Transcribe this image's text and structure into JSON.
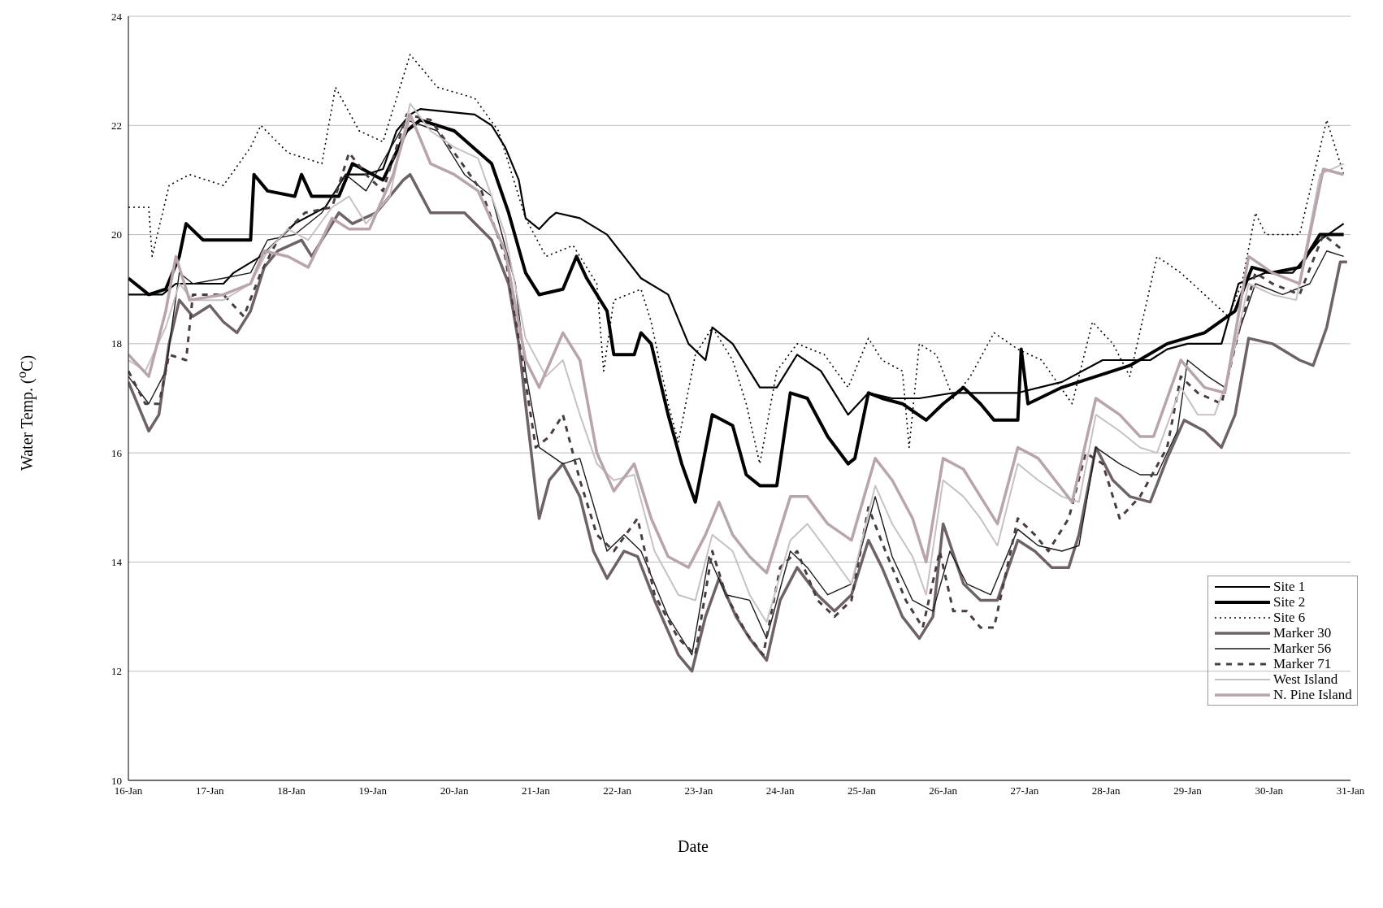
{
  "chart_data": {
    "type": "line",
    "xlabel": "Date",
    "ylabel": "Water Temp. ($^{o}$C)",
    "xlim": [
      "--01-16",
      "--01-31"
    ],
    "xticks": [
      {
        "value": "--01-16",
        "label": "16-Jan"
      },
      {
        "value": "--01-17",
        "label": "17-Jan"
      },
      {
        "value": "--01-18",
        "label": "18-Jan"
      },
      {
        "value": "--01-19",
        "label": "19-Jan"
      },
      {
        "value": "--01-20",
        "label": "20-Jan"
      },
      {
        "value": "--01-21",
        "label": "21-Jan"
      },
      {
        "value": "--01-22",
        "label": "22-Jan"
      },
      {
        "value": "--01-23",
        "label": "23-Jan"
      },
      {
        "value": "--01-24",
        "label": "24-Jan"
      },
      {
        "value": "--01-25",
        "label": "25-Jan"
      },
      {
        "value": "--01-26",
        "label": "26-Jan"
      },
      {
        "value": "--01-27",
        "label": "27-Jan"
      },
      {
        "value": "--01-28",
        "label": "28-Jan"
      },
      {
        "value": "--01-29",
        "label": "29-Jan"
      },
      {
        "value": "--01-30",
        "label": "30-Jan"
      },
      {
        "value": "--01-31",
        "label": "31-Jan"
      }
    ],
    "ylim": [
      10,
      24
    ],
    "yticks": [
      10,
      12,
      14,
      16,
      18,
      20,
      22,
      24
    ],
    "grid": "y",
    "legend": "right",
    "marker": "none",
    "series": [
      {
        "name": "Site 1",
        "color": "#000000",
        "x": [
          "--01-16T00:00",
          "--01-16T10:00",
          "--01-16T14:00",
          "--01-17T04:00",
          "--01-17T07:00",
          "--01-17T15:00",
          "--01-17T20:00",
          "--01-18T01:00",
          "--01-18T10:00",
          "--01-18T16:00",
          "--01-18T22:00",
          "--01-19T03:00",
          "--01-19T07:00",
          "--01-19T11:00",
          "--01-19T14:00",
          "--01-20T06:00",
          "--01-20T11:00",
          "--01-20T15:00",
          "--01-20T19:00",
          "--01-20T21:00",
          "--01-21T01:00",
          "--01-21T04:00",
          "--01-21T06:00",
          "--01-21T13:00",
          "--01-21T21:00",
          "--01-22T02:00",
          "--01-22T07:00",
          "--01-22T15:00",
          "--01-22T21:00",
          "--01-23T02:00",
          "--01-23T04:00",
          "--01-23T10:00",
          "--01-23T18:00",
          "--01-23T23:00",
          "--01-24T05:00",
          "--01-24T12:00",
          "--01-24T20:00",
          "--01-25T02:00",
          "--01-25T09:00",
          "--01-25T17:00",
          "--01-26T03:00",
          "--01-26T22:00",
          "--01-27T11:00",
          "--01-27T23:00",
          "--01-28T13:00",
          "--01-28T18:00",
          "--01-29T00:00",
          "--01-29T10:00",
          "--01-29T15:00",
          "--01-29T23:00",
          "--01-30T07:00",
          "--01-30T15:00",
          "--01-30T22:00"
        ],
        "values": [
          18.9,
          18.9,
          19.1,
          19.1,
          19.3,
          19.6,
          19.9,
          20.2,
          20.5,
          21.1,
          21.1,
          21.2,
          21.9,
          22.2,
          22.3,
          22.2,
          22.0,
          21.6,
          21.0,
          20.3,
          20.1,
          20.3,
          20.4,
          20.3,
          20.0,
          19.6,
          19.2,
          18.9,
          18.0,
          17.7,
          18.3,
          18.0,
          17.2,
          17.2,
          17.8,
          17.5,
          16.7,
          17.1,
          17.0,
          17.0,
          17.1,
          17.1,
          17.3,
          17.7,
          17.7,
          17.9,
          18.0,
          18.0,
          19.1,
          19.3,
          19.3,
          19.9,
          20.2
        ]
      },
      {
        "name": "Site 2",
        "color": "#000000",
        "x": [
          "--01-16T00:00",
          "--01-16T06:00",
          "--01-16T11:00",
          "--01-16T15:00",
          "--01-16T17:00",
          "--01-16T22:00",
          "--01-17T12:00",
          "--01-17T13:00",
          "--01-17T17:00",
          "--01-18T01:00",
          "--01-18T03:00",
          "--01-18T06:00",
          "--01-18T14:00",
          "--01-18T18:00",
          "--01-19T03:00",
          "--01-19T10:00",
          "--01-19T14:00",
          "--01-20T00:00",
          "--01-20T11:00",
          "--01-20T16:00",
          "--01-20T21:00",
          "--01-21T01:00",
          "--01-21T08:00",
          "--01-21T12:00",
          "--01-21T15:00",
          "--01-21T21:00",
          "--01-21T23:00",
          "--01-22T05:00",
          "--01-22T07:00",
          "--01-22T10:00",
          "--01-22T15:00",
          "--01-22T19:00",
          "--01-22T23:00",
          "--01-23T04:00",
          "--01-23T10:00",
          "--01-23T14:00",
          "--01-23T18:00",
          "--01-23T23:00",
          "--01-24T03:00",
          "--01-24T08:00",
          "--01-24T14:00",
          "--01-24T20:00",
          "--01-24T22:00",
          "--01-25T02:00",
          "--01-25T06:00",
          "--01-25T12:00",
          "--01-25T19:00",
          "--01-26T00:00",
          "--01-26T06:00",
          "--01-26T11:00",
          "--01-26T15:00",
          "--01-26T22:00",
          "--01-26T23:00",
          "--01-27T01:00",
          "--01-27T11:00",
          "--01-27T21:00",
          "--01-28T07:00",
          "--01-28T18:00",
          "--01-29T05:00",
          "--01-29T14:00",
          "--01-29T19:00",
          "--01-30T01:00",
          "--01-30T09:00",
          "--01-30T15:00",
          "--01-30T22:00"
        ],
        "values": [
          19.2,
          18.9,
          19.0,
          19.6,
          20.2,
          19.9,
          19.9,
          21.1,
          20.8,
          20.7,
          21.1,
          20.7,
          20.7,
          21.3,
          21.0,
          21.9,
          22.1,
          21.9,
          21.3,
          20.4,
          19.3,
          18.9,
          19.0,
          19.6,
          19.2,
          18.6,
          17.8,
          17.8,
          18.2,
          18.0,
          16.7,
          15.8,
          15.1,
          16.7,
          16.5,
          15.6,
          15.4,
          15.4,
          17.1,
          17.0,
          16.3,
          15.8,
          15.9,
          17.1,
          17.0,
          16.9,
          16.6,
          16.9,
          17.2,
          16.9,
          16.6,
          16.6,
          17.9,
          16.9,
          17.2,
          17.4,
          17.6,
          18.0,
          18.2,
          18.6,
          19.4,
          19.3,
          19.4,
          20.0,
          20.0
        ]
      },
      {
        "name": "Site 6",
        "color": "#000000",
        "line_style": "dotted",
        "x": [
          "--01-16T00:00",
          "--01-16T06:00",
          "--01-16T07:00",
          "--01-16T12:00",
          "--01-16T18:00",
          "--01-17T04:00",
          "--01-17T12:00",
          "--01-17T15:00",
          "--01-17T23:00",
          "--01-18T09:00",
          "--01-18T13:00",
          "--01-18T20:00",
          "--01-19T03:00",
          "--01-19T11:00",
          "--01-19T19:00",
          "--01-20T06:00",
          "--01-20T13:00",
          "--01-20T21:00",
          "--01-21T03:00",
          "--01-21T11:00",
          "--01-21T18:00",
          "--01-21T20:00",
          "--01-21T23:00",
          "--01-22T07:00",
          "--01-22T10:00",
          "--01-22T15:00",
          "--01-22T18:00",
          "--01-22T23:00",
          "--01-23T04:00",
          "--01-23T10:00",
          "--01-23T14:00",
          "--01-23T18:00",
          "--01-23T23:00",
          "--01-24T05:00",
          "--01-24T13:00",
          "--01-24T20:00",
          "--01-25T02:00",
          "--01-25T06:00",
          "--01-25T12:00",
          "--01-25T14:00",
          "--01-25T17:00",
          "--01-25T22:00",
          "--01-26T03:00",
          "--01-26T08:00",
          "--01-26T15:00",
          "--01-26T22:00",
          "--01-27T05:00",
          "--01-27T14:00",
          "--01-27T20:00",
          "--01-28T02:00",
          "--01-28T07:00",
          "--01-28T15:00",
          "--01-28T22:00",
          "--01-29T05:00",
          "--01-29T12:00",
          "--01-29T16:00",
          "--01-29T20:00",
          "--01-29T23:00",
          "--01-30T09:00",
          "--01-30T17:00",
          "--01-30T22:00"
        ],
        "values": [
          20.5,
          20.5,
          19.6,
          20.9,
          21.1,
          20.9,
          21.6,
          22.0,
          21.5,
          21.3,
          22.7,
          21.9,
          21.7,
          23.3,
          22.7,
          22.5,
          21.9,
          20.3,
          19.6,
          19.8,
          19.1,
          17.5,
          18.8,
          19.0,
          18.4,
          16.9,
          16.2,
          17.8,
          18.3,
          17.7,
          16.9,
          15.8,
          17.5,
          18.0,
          17.8,
          17.2,
          18.1,
          17.7,
          17.5,
          16.1,
          18.0,
          17.8,
          17.0,
          17.4,
          18.2,
          17.9,
          17.7,
          16.9,
          18.4,
          18.0,
          17.4,
          19.6,
          19.3,
          18.9,
          18.5,
          19.1,
          20.4,
          20.0,
          20.0,
          22.1,
          21.1
        ]
      },
      {
        "name": "Marker 30",
        "color": "#6e6268",
        "x": [
          "--01-16T00:00",
          "--01-16T06:00",
          "--01-16T09:00",
          "--01-16T12:00",
          "--01-16T15:00",
          "--01-16T19:00",
          "--01-17T00:00",
          "--01-17T04:00",
          "--01-17T08:00",
          "--01-17T12:00",
          "--01-17T16:00",
          "--01-17T20:00",
          "--01-18T03:00",
          "--01-18T06:00",
          "--01-18T10:00",
          "--01-18T14:00",
          "--01-18T18:00",
          "--01-19T01:00",
          "--01-19T09:00",
          "--01-19T11:00",
          "--01-19T17:00",
          "--01-20T03:00",
          "--01-20T11:00",
          "--01-20T16:00",
          "--01-20T19:00",
          "--01-20T21:00",
          "--01-21T00:00",
          "--01-21T01:00",
          "--01-21T04:00",
          "--01-21T08:00",
          "--01-21T13:00",
          "--01-21T17:00",
          "--01-21T21:00",
          "--01-22T02:00",
          "--01-22T06:00",
          "--01-22T11:00",
          "--01-22T18:00",
          "--01-22T22:00",
          "--01-23T02:00",
          "--01-23T06:00",
          "--01-23T11:00",
          "--01-23T15:00",
          "--01-23T20:00",
          "--01-24T00:00",
          "--01-24T05:00",
          "--01-24T11:00",
          "--01-24T16:00",
          "--01-24T21:00",
          "--01-25T02:00",
          "--01-25T06:00",
          "--01-25T12:00",
          "--01-25T17:00",
          "--01-25T21:00",
          "--01-26T00:00",
          "--01-26T06:00",
          "--01-26T11:00",
          "--01-26T16:00",
          "--01-26T22:00",
          "--01-27T03:00",
          "--01-27T08:00",
          "--01-27T13:00",
          "--01-27T16:00",
          "--01-27T21:00",
          "--01-28T02:00",
          "--01-28T07:00",
          "--01-28T13:00",
          "--01-28T18:00",
          "--01-28T23:00",
          "--01-29T05:00",
          "--01-29T10:00",
          "--01-29T14:00",
          "--01-29T18:00",
          "--01-30T01:00",
          "--01-30T09:00",
          "--01-30T13:00",
          "--01-30T17:00",
          "--01-30T21:00",
          "--01-30T23:00"
        ],
        "values": [
          17.3,
          16.4,
          16.7,
          18.0,
          18.8,
          18.5,
          18.7,
          18.4,
          18.2,
          18.6,
          19.4,
          19.7,
          19.9,
          19.6,
          20.0,
          20.4,
          20.2,
          20.4,
          21.0,
          21.1,
          20.4,
          20.4,
          19.9,
          19.1,
          18.0,
          16.9,
          15.3,
          14.8,
          15.5,
          15.8,
          15.2,
          14.2,
          13.7,
          14.2,
          14.1,
          13.3,
          12.3,
          12.0,
          13.0,
          13.7,
          13.0,
          12.6,
          12.2,
          13.3,
          13.9,
          13.4,
          13.1,
          13.4,
          14.4,
          13.9,
          13.0,
          12.6,
          13.0,
          14.7,
          13.6,
          13.3,
          13.3,
          14.4,
          14.2,
          13.9,
          13.9,
          14.5,
          16.1,
          15.5,
          15.2,
          15.1,
          15.9,
          16.6,
          16.4,
          16.1,
          16.7,
          18.1,
          18.0,
          17.7,
          17.6,
          18.3,
          19.5,
          19.5
        ]
      },
      {
        "name": "Marker 56",
        "color": "#1a1a1a",
        "x": [
          "--01-16T00:00",
          "--01-16T06:00",
          "--01-16T11:00",
          "--01-16T15:00",
          "--01-16T19:00",
          "--01-17T04:00",
          "--01-17T12:00",
          "--01-17T17:00",
          "--01-18T01:00",
          "--01-18T09:00",
          "--01-18T16:00",
          "--01-18T22:00",
          "--01-19T10:00",
          "--01-19T19:00",
          "--01-20T03:00",
          "--01-20T11:00",
          "--01-20T18:00",
          "--01-20T21:00",
          "--01-21T01:00",
          "--01-21T08:00",
          "--01-21T13:00",
          "--01-21T21:00",
          "--01-22T02:00",
          "--01-22T07:00",
          "--01-22T15:00",
          "--01-22T22:00",
          "--01-23T03:00",
          "--01-23T08:00",
          "--01-23T15:00",
          "--01-23T20:00",
          "--01-24T03:00",
          "--01-24T08:00",
          "--01-24T14:00",
          "--01-24T21:00",
          "--01-25T04:00",
          "--01-25T09:00",
          "--01-25T15:00",
          "--01-25T21:00",
          "--01-26T02:00",
          "--01-26T07:00",
          "--01-26T14:00",
          "--01-26T22:00",
          "--01-27T04:00",
          "--01-27T11:00",
          "--01-27T16:00",
          "--01-27T21:00",
          "--01-28T04:00",
          "--01-28T10:00",
          "--01-28T15:00",
          "--01-28T21:00",
          "--01-29T00:00",
          "--01-29T06:00",
          "--01-29T11:00",
          "--01-29T15:00",
          "--01-29T20:00",
          "--01-30T04:00",
          "--01-30T12:00",
          "--01-30T17:00",
          "--01-30T22:00"
        ],
        "values": [
          17.4,
          16.9,
          17.5,
          19.3,
          19.1,
          19.2,
          19.3,
          19.9,
          20.0,
          20.4,
          21.1,
          20.8,
          22.1,
          21.9,
          21.1,
          20.7,
          19.1,
          17.5,
          16.1,
          15.8,
          15.9,
          14.2,
          14.5,
          14.2,
          13.0,
          12.3,
          14.1,
          13.4,
          13.3,
          12.6,
          14.2,
          13.9,
          13.4,
          13.6,
          15.2,
          14.1,
          13.3,
          13.1,
          14.2,
          13.6,
          13.4,
          14.6,
          14.3,
          14.2,
          14.3,
          16.1,
          15.8,
          15.6,
          15.6,
          16.4,
          17.7,
          17.4,
          17.2,
          18.2,
          19.1,
          18.9,
          19.1,
          19.7,
          19.6
        ]
      },
      {
        "name": "Marker 71",
        "color": "#4a3c44",
        "line_style": "dashed",
        "x": [
          "--01-16T00:00",
          "--01-16T05:00",
          "--01-16T09:00",
          "--01-16T12:00",
          "--01-16T17:00",
          "--01-16T19:00",
          "--01-17T04:00",
          "--01-17T10:00",
          "--01-17T15:00",
          "--01-17T20:00",
          "--01-18T04:00",
          "--01-18T12:00",
          "--01-18T17:00",
          "--01-18T22:00",
          "--01-19T03:00",
          "--01-19T10:00",
          "--01-19T17:00",
          "--01-20T00:00",
          "--01-20T08:00",
          "--01-20T15:00",
          "--01-20T20:00",
          "--01-21T00:00",
          "--01-21T04:00",
          "--01-21T08:00",
          "--01-21T13:00",
          "--01-21T18:00",
          "--01-21T23:00",
          "--01-22T06:00",
          "--01-22T11:00",
          "--01-22T18:00",
          "--01-22T23:00",
          "--01-23T04:00",
          "--01-23T08:00",
          "--01-23T14:00",
          "--01-23T19:00",
          "--01-24T00:00",
          "--01-24T05:00",
          "--01-24T11:00",
          "--01-24T16:00",
          "--01-24T21:00",
          "--01-25T02:00",
          "--01-25T07:00",
          "--01-25T13:00",
          "--01-25T18:00",
          "--01-25T23:00",
          "--01-26T03:00",
          "--01-26T07:00",
          "--01-26T11:00",
          "--01-26T15:00",
          "--01-26T22:00",
          "--01-27T03:00",
          "--01-27T07:00",
          "--01-27T13:00",
          "--01-27T18:00",
          "--01-27T23:00",
          "--01-28T04:00",
          "--01-28T10:00",
          "--01-28T18:00",
          "--01-28T22:00",
          "--01-29T03:00",
          "--01-29T10:00",
          "--01-29T15:00",
          "--01-29T20:00",
          "--01-30T01:00",
          "--01-30T09:00",
          "--01-30T16:00",
          "--01-30T22:00"
        ],
        "values": [
          17.5,
          16.9,
          16.9,
          17.8,
          17.7,
          18.9,
          18.9,
          18.5,
          19.3,
          19.9,
          20.4,
          20.5,
          21.5,
          21.1,
          20.8,
          22.2,
          22.1,
          21.5,
          20.8,
          19.6,
          17.7,
          16.1,
          16.3,
          16.7,
          15.5,
          14.5,
          14.2,
          14.8,
          13.4,
          12.6,
          12.3,
          14.2,
          13.4,
          12.7,
          12.3,
          13.9,
          14.2,
          13.3,
          13.0,
          13.3,
          15.0,
          14.2,
          13.3,
          12.8,
          14.2,
          13.1,
          13.1,
          12.8,
          12.8,
          14.8,
          14.5,
          14.2,
          14.8,
          16.0,
          15.8,
          14.8,
          15.2,
          16.1,
          17.4,
          17.1,
          16.9,
          18.2,
          19.3,
          19.1,
          18.9,
          20.0,
          19.7
        ]
      },
      {
        "name": "West Island",
        "color": "#c8c0c4",
        "x": [
          "--01-16T00:00",
          "--01-16T05:00",
          "--01-16T11:00",
          "--01-16T15:00",
          "--01-16T19:00",
          "--01-17T04:00",
          "--01-17T12:00",
          "--01-17T17:00",
          "--01-17T23:00",
          "--01-18T05:00",
          "--01-18T12:00",
          "--01-18T17:00",
          "--01-18T22:00",
          "--01-19T05:00",
          "--01-19T11:00",
          "--01-19T17:00",
          "--01-20T00:00",
          "--01-20T07:00",
          "--01-20T15:00",
          "--01-20T21:00",
          "--01-21T03:00",
          "--01-21T08:00",
          "--01-21T13:00",
          "--01-21T18:00",
          "--01-21T23:00",
          "--01-22T05:00",
          "--01-22T11:00",
          "--01-22T18:00",
          "--01-22T23:00",
          "--01-23T04:00",
          "--01-23T10:00",
          "--01-23T15:00",
          "--01-23T20:00",
          "--01-24T03:00",
          "--01-24T08:00",
          "--01-24T14:00",
          "--01-24T21:00",
          "--01-25T04:00",
          "--01-25T09:00",
          "--01-25T15:00",
          "--01-25T19:00",
          "--01-26T00:00",
          "--01-26T06:00",
          "--01-26T11:00",
          "--01-26T16:00",
          "--01-26T22:00",
          "--01-27T04:00",
          "--01-27T11:00",
          "--01-27T16:00",
          "--01-27T21:00",
          "--01-28T04:00",
          "--01-28T10:00",
          "--01-28T15:00",
          "--01-28T22:00",
          "--01-29T03:00",
          "--01-29T08:00",
          "--01-29T12:00",
          "--01-29T18:00",
          "--01-30T01:00",
          "--01-30T08:00",
          "--01-30T15:00",
          "--01-30T22:00"
        ],
        "values": [
          17.7,
          17.5,
          18.3,
          19.1,
          18.8,
          18.8,
          19.1,
          19.7,
          20.1,
          19.9,
          20.5,
          20.7,
          20.2,
          20.7,
          22.4,
          21.9,
          21.6,
          21.4,
          20.0,
          18.1,
          17.4,
          17.7,
          16.7,
          15.8,
          15.5,
          15.6,
          14.2,
          13.4,
          13.3,
          14.5,
          14.2,
          13.4,
          12.9,
          14.4,
          14.7,
          14.2,
          13.6,
          15.4,
          14.7,
          14.1,
          13.4,
          15.5,
          15.2,
          14.8,
          14.3,
          15.8,
          15.5,
          15.2,
          15.1,
          16.7,
          16.4,
          16.1,
          16.0,
          17.2,
          16.7,
          16.7,
          17.4,
          19.1,
          18.9,
          18.8,
          21.1,
          21.3
        ]
      },
      {
        "name": "N. Pine Island",
        "color": "#b8a4ac",
        "x": [
          "--01-16T00:00",
          "--01-16T06:00",
          "--01-16T11:00",
          "--01-16T14:00",
          "--01-16T18:00",
          "--01-17T04:00",
          "--01-17T12:00",
          "--01-17T16:00",
          "--01-17T23:00",
          "--01-18T05:00",
          "--01-18T12:00",
          "--01-18T17:00",
          "--01-18T23:00",
          "--01-19T06:00",
          "--01-19T11:00",
          "--01-19T17:00",
          "--01-20T00:00",
          "--01-20T07:00",
          "--01-20T15:00",
          "--01-20T21:00",
          "--01-21T01:00",
          "--01-21T08:00",
          "--01-21T13:00",
          "--01-21T18:00",
          "--01-21T23:00",
          "--01-22T05:00",
          "--01-22T10:00",
          "--01-22T15:00",
          "--01-22T21:00",
          "--01-23T02:00",
          "--01-23T06:00",
          "--01-23T10:00",
          "--01-23T15:00",
          "--01-23T20:00",
          "--01-24T03:00",
          "--01-24T08:00",
          "--01-24T14:00",
          "--01-24T21:00",
          "--01-25T04:00",
          "--01-25T09:00",
          "--01-25T15:00",
          "--01-25T19:00",
          "--01-26T00:00",
          "--01-26T06:00",
          "--01-26T11:00",
          "--01-26T16:00",
          "--01-26T22:00",
          "--01-27T04:00",
          "--01-27T09:00",
          "--01-27T14:00",
          "--01-27T21:00",
          "--01-28T04:00",
          "--01-28T10:00",
          "--01-28T14:00",
          "--01-28T22:00",
          "--01-29T05:00",
          "--01-29T11:00",
          "--01-29T18:00",
          "--01-30T01:00",
          "--01-30T09:00",
          "--01-30T16:00",
          "--01-30T22:00"
        ],
        "values": [
          17.8,
          17.4,
          18.6,
          19.6,
          18.8,
          18.9,
          19.1,
          19.7,
          19.6,
          19.4,
          20.3,
          20.1,
          20.1,
          21.1,
          22.2,
          21.3,
          21.1,
          20.8,
          19.7,
          17.7,
          17.2,
          18.2,
          17.7,
          16.0,
          15.3,
          15.8,
          14.8,
          14.1,
          13.9,
          14.5,
          15.1,
          14.5,
          14.1,
          13.8,
          15.2,
          15.2,
          14.7,
          14.4,
          15.9,
          15.5,
          14.8,
          14.0,
          15.9,
          15.7,
          15.2,
          14.7,
          16.1,
          15.9,
          15.5,
          15.1,
          17.0,
          16.7,
          16.3,
          16.3,
          17.7,
          17.2,
          17.1,
          19.6,
          19.3,
          19.1,
          21.2,
          21.1
        ]
      }
    ]
  }
}
